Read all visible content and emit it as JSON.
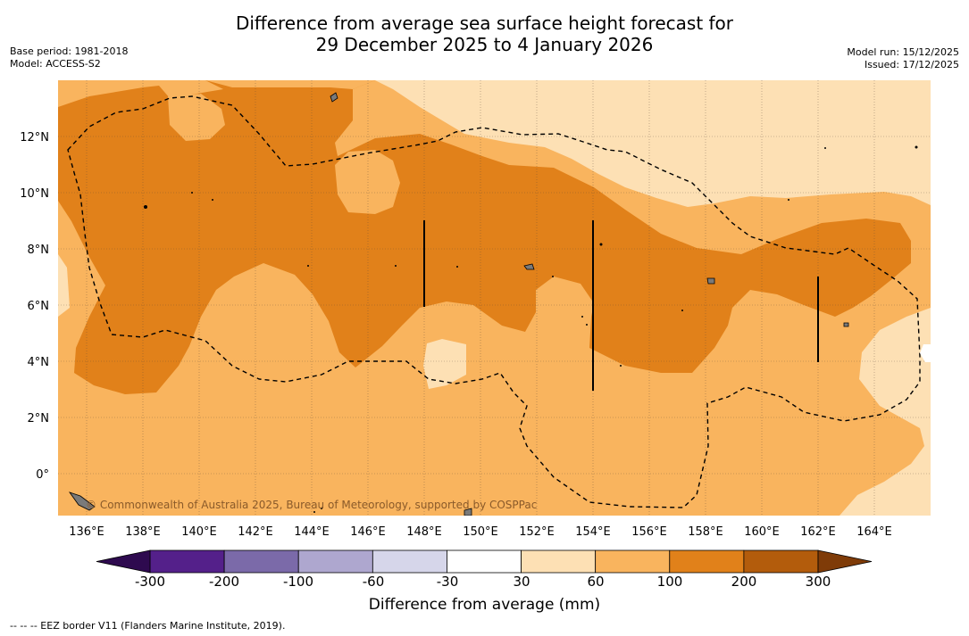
{
  "title": {
    "line1": "Difference from average sea surface height forecast for",
    "line2": "29 December 2025 to 4 January 2026"
  },
  "meta_left": {
    "base_period": "Base period: 1981-2018",
    "model": "Model: ACCESS-S2"
  },
  "meta_right": {
    "model_run": "Model run: 15/12/2025",
    "issued": "Issued: 17/12/2025"
  },
  "map": {
    "lon_range": [
      135,
      166
    ],
    "lat_range": [
      -1.5,
      14
    ],
    "lon_ticks": [
      "136°E",
      "138°E",
      "140°E",
      "142°E",
      "144°E",
      "146°E",
      "148°E",
      "150°E",
      "152°E",
      "154°E",
      "156°E",
      "158°E",
      "160°E",
      "162°E",
      "164°E"
    ],
    "lat_ticks": [
      "12°N",
      "10°N",
      "8°N",
      "6°N",
      "4°N",
      "2°N",
      "0°"
    ],
    "copyright": "© Commonwealth of Australia 2025, Bureau of Meteorology, supported by COSPPac"
  },
  "colorbar": {
    "ticks": [
      "-300",
      "-200",
      "-100",
      "-60",
      "-30",
      "30",
      "60",
      "100",
      "200",
      "300"
    ],
    "colors": [
      "#54208a",
      "#7b6aa9",
      "#aea7cf",
      "#d6d6ea",
      "#ffffff",
      "#fde0b4",
      "#f9b45e",
      "#e1811a",
      "#b35c0c"
    ],
    "under_color": "#2e0a4f",
    "over_color": "#7f3b08",
    "label": "Difference from average (mm)"
  },
  "footnote": "-- -- -- EEZ border V11 (Flanders Marine Institute, 2019)."
}
